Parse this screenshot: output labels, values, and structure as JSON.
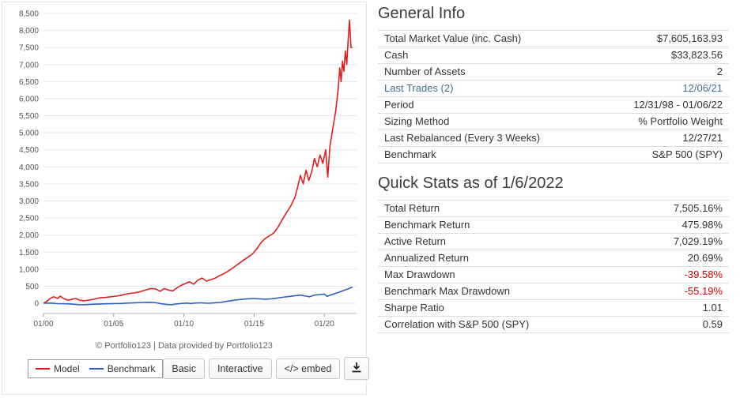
{
  "colors": {
    "link": "#41708f",
    "negative": "#cc0000",
    "model_line": "#e02020",
    "benchmark_line": "#3060c0"
  },
  "chart_data": {
    "type": "line",
    "title": "",
    "xlabel": "",
    "ylabel": "",
    "xlim": [
      2000,
      2022.3
    ],
    "ylim": [
      -300,
      8500
    ],
    "grid": true,
    "legend_position": "bottom-left",
    "caption": "© Portfolio123 | Data provided by Portfolio123",
    "y_ticks": [
      0,
      500,
      1000,
      1500,
      2000,
      2500,
      3000,
      3500,
      4000,
      4500,
      5000,
      5500,
      6000,
      6500,
      7000,
      7500,
      8000,
      8500
    ],
    "x_ticks": [
      {
        "v": 2000,
        "label": "01/00"
      },
      {
        "v": 2005,
        "label": "01/05"
      },
      {
        "v": 2010,
        "label": "01/10"
      },
      {
        "v": 2015,
        "label": "01/15"
      },
      {
        "v": 2020,
        "label": "01/20"
      }
    ],
    "series": [
      {
        "name": "Model",
        "color": "#e02020",
        "x": [
          2000.0,
          2000.25,
          2000.5,
          2000.75,
          2001.0,
          2001.2,
          2001.4,
          2001.6,
          2001.8,
          2002.0,
          2002.3,
          2002.6,
          2002.9,
          2003.2,
          2003.6,
          2004.0,
          2004.4,
          2004.8,
          2005.2,
          2005.6,
          2006.0,
          2006.4,
          2006.8,
          2007.2,
          2007.6,
          2008.0,
          2008.3,
          2008.6,
          2008.9,
          2009.2,
          2009.5,
          2009.8,
          2010.1,
          2010.4,
          2010.7,
          2011.0,
          2011.3,
          2011.6,
          2011.9,
          2012.2,
          2012.5,
          2012.8,
          2013.1,
          2013.4,
          2013.7,
          2014.0,
          2014.3,
          2014.6,
          2014.9,
          2015.2,
          2015.5,
          2015.8,
          2016.1,
          2016.4,
          2016.7,
          2017.0,
          2017.3,
          2017.6,
          2017.9,
          2018.1,
          2018.3,
          2018.5,
          2018.7,
          2018.9,
          2019.1,
          2019.3,
          2019.5,
          2019.7,
          2019.9,
          2020.1,
          2020.25,
          2020.4,
          2020.6,
          2020.8,
          2021.0,
          2021.1,
          2021.2,
          2021.3,
          2021.4,
          2021.5,
          2021.6,
          2021.7,
          2021.8,
          2021.9,
          2022.0
        ],
        "values": [
          0,
          60,
          150,
          190,
          140,
          210,
          150,
          110,
          90,
          120,
          140,
          90,
          70,
          90,
          120,
          160,
          170,
          190,
          210,
          240,
          280,
          300,
          330,
          380,
          430,
          420,
          350,
          430,
          390,
          360,
          450,
          520,
          580,
          630,
          560,
          680,
          740,
          650,
          690,
          730,
          800,
          860,
          930,
          1010,
          1100,
          1190,
          1280,
          1360,
          1450,
          1600,
          1780,
          1900,
          1980,
          2060,
          2230,
          2450,
          2650,
          2840,
          3100,
          3400,
          3750,
          3500,
          3900,
          3600,
          3850,
          4250,
          4000,
          4350,
          4100,
          4500,
          3700,
          4600,
          5100,
          5600,
          6300,
          6900,
          6500,
          7100,
          6800,
          7400,
          7000,
          7700,
          8300,
          7500,
          7505
        ]
      },
      {
        "name": "Benchmark",
        "color": "#3060c0",
        "x": [
          2000,
          2000.5,
          2001,
          2001.5,
          2002,
          2002.5,
          2002.8,
          2003.2,
          2003.8,
          2004.5,
          2005,
          2005.5,
          2006,
          2006.5,
          2007,
          2007.5,
          2007.9,
          2008.4,
          2008.8,
          2009.1,
          2009.4,
          2009.8,
          2010.2,
          2010.5,
          2010.8,
          2011.2,
          2011.5,
          2011.8,
          2012.2,
          2012.6,
          2013,
          2013.5,
          2014,
          2014.5,
          2015,
          2015.5,
          2015.8,
          2016.2,
          2016.6,
          2017,
          2017.5,
          2018,
          2018.3,
          2018.7,
          2018.95,
          2019.3,
          2019.7,
          2020.0,
          2020.2,
          2020.5,
          2020.8,
          2021.1,
          2021.4,
          2021.7,
          2022.0
        ],
        "values": [
          0,
          5,
          -10,
          -15,
          -25,
          -40,
          -45,
          -35,
          -25,
          -15,
          -10,
          -5,
          5,
          15,
          25,
          30,
          25,
          -15,
          -35,
          -45,
          -25,
          -5,
          5,
          -5,
          5,
          15,
          5,
          0,
          15,
          25,
          55,
          85,
          110,
          130,
          140,
          125,
          120,
          130,
          150,
          175,
          200,
          225,
          240,
          210,
          190,
          240,
          255,
          270,
          200,
          250,
          290,
          330,
          380,
          420,
          476
        ]
      }
    ]
  },
  "legend": {
    "items": [
      {
        "label": "Model",
        "color": "#e02020"
      },
      {
        "label": "Benchmark",
        "color": "#3060c0"
      }
    ]
  },
  "toolbar": {
    "basic_label": "Basic",
    "interactive_label": "Interactive",
    "embed_label": "</> embed",
    "download_icon": "download-icon"
  },
  "general_info": {
    "title": "General Info",
    "rows": [
      {
        "label": "Total Market Value (inc. Cash)",
        "value": "$7,605,163.93"
      },
      {
        "label": "Cash",
        "value": "$33,823.56"
      },
      {
        "label": "Number of Assets",
        "value": "2"
      },
      {
        "label": "Last Trades (2)",
        "value": "12/06/21",
        "link": true
      },
      {
        "label": "Period",
        "value": "12/31/98 - 01/06/22"
      },
      {
        "label": "Sizing Method",
        "value": "% Portfolio Weight"
      },
      {
        "label": "Last Rebalanced (Every 3 Weeks)",
        "value": "12/27/21"
      },
      {
        "label": "Benchmark",
        "value": "S&P 500 (SPY)"
      }
    ]
  },
  "quick_stats": {
    "title": "Quick Stats as of 1/6/2022",
    "rows": [
      {
        "label": "Total Return",
        "value": "7,505.16%"
      },
      {
        "label": "Benchmark Return",
        "value": "475.98%"
      },
      {
        "label": "Active Return",
        "value": "7,029.19%"
      },
      {
        "label": "Annualized Return",
        "value": "20.69%"
      },
      {
        "label": "Max Drawdown",
        "value": "-39.58%",
        "negative": true
      },
      {
        "label": "Benchmark Max Drawdown",
        "value": "-55.19%",
        "negative": true
      },
      {
        "label": "Sharpe Ratio",
        "value": "1.01"
      },
      {
        "label": "Correlation with S&P 500 (SPY)",
        "value": "0.59"
      }
    ]
  }
}
